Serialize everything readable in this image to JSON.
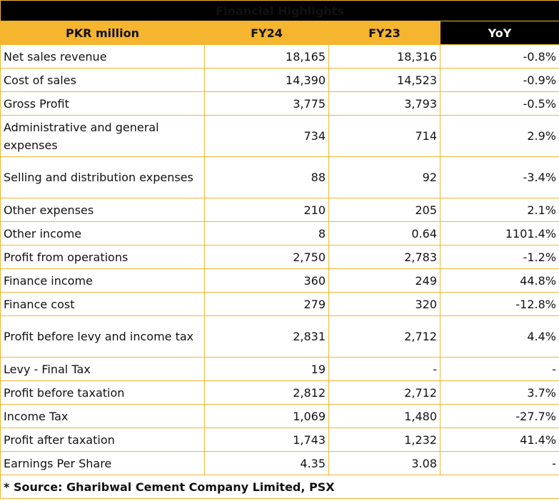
{
  "title": "Financial Highlights",
  "headers": [
    "PKR million",
    "FY24",
    "FY23",
    "YoY"
  ],
  "rows": [
    {
      "label": "Net sales revenue",
      "fy24": "18,165",
      "fy23": "18,316",
      "yoy": "-0.8%"
    },
    {
      "label": "Cost of sales",
      "fy24": "14,390",
      "fy23": "14,523",
      "yoy": "-0.9%"
    },
    {
      "label": "Gross Profit",
      "fy24": "3,775",
      "fy23": "3,793",
      "yoy": "-0.5%"
    },
    {
      "label": "Administrative and general expenses",
      "fy24": "734",
      "fy23": "714",
      "yoy": "2.9%"
    },
    {
      "label": "Selling and distribution expenses",
      "fy24": "88",
      "fy23": "92",
      "yoy": "-3.4%"
    },
    {
      "label": "Other expenses",
      "fy24": "210",
      "fy23": "205",
      "yoy": "2.1%"
    },
    {
      "label": "Other income",
      "fy24": "8",
      "fy23": "0.64",
      "yoy": "1101.4%"
    },
    {
      "label": "Profit from operations",
      "fy24": "2,750",
      "fy23": "2,783",
      "yoy": "-1.2%"
    },
    {
      "label": "Finance income",
      "fy24": "360",
      "fy23": "249",
      "yoy": "44.8%"
    },
    {
      "label": "Finance cost",
      "fy24": "279",
      "fy23": "320",
      "yoy": "-12.8%"
    },
    {
      "label": "Profit before levy and income tax",
      "fy24": "2,831",
      "fy23": "2,712",
      "yoy": "4.4%"
    },
    {
      "label": "Levy - Final Tax",
      "fy24": "19",
      "fy23": "-",
      "yoy": "-"
    },
    {
      "label": "Profit before taxation",
      "fy24": "2,812",
      "fy23": "2,712",
      "yoy": "3.7%"
    },
    {
      "label": "Income Tax",
      "fy24": "1,069",
      "fy23": "1,480",
      "yoy": "-27.7%"
    },
    {
      "label": "Profit after taxation",
      "fy24": "1,743",
      "fy23": "1,232",
      "yoy": "41.4%"
    },
    {
      "label": "Earnings Per Share",
      "fy24": "4.35",
      "fy23": "3.08",
      "yoy": "-"
    }
  ],
  "source": "* Source: Gharibwal Cement Company Limited, PSX",
  "colors": {
    "accent": "#f6b52f",
    "title_bg": "#000000",
    "border": "#f2b531"
  }
}
